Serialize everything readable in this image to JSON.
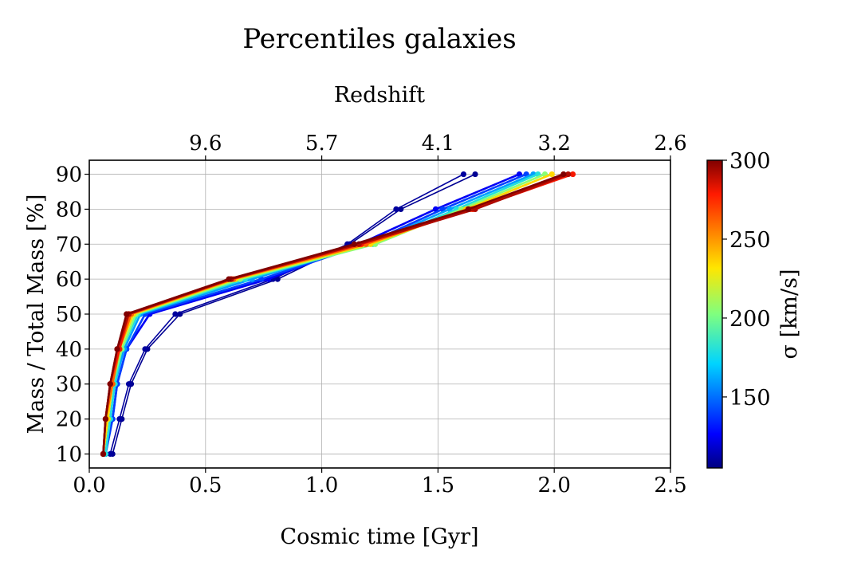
{
  "chart_data": {
    "type": "line",
    "title": "Percentiles galaxies",
    "xlabel": "Cosmic time [Gyr]",
    "ylabel": "Mass / Total Mass [%]",
    "xlim": [
      0.0,
      2.5
    ],
    "ylim": [
      6,
      94
    ],
    "grid": true,
    "xticks": [
      "0.0",
      "0.5",
      "1.0",
      "1.5",
      "2.0",
      "2.5"
    ],
    "yticks": [
      "10",
      "20",
      "30",
      "40",
      "50",
      "60",
      "70",
      "80",
      "90"
    ],
    "top_axis": {
      "label": "Redshift",
      "ticks": [
        {
          "label": "9.6",
          "time": 0.5
        },
        {
          "label": "5.7",
          "time": 1.0
        },
        {
          "label": "4.1",
          "time": 1.5
        },
        {
          "label": "3.2",
          "time": 2.0
        },
        {
          "label": "2.6",
          "time": 2.5
        }
      ]
    },
    "colorbar": {
      "label": "σ [km/s]",
      "min": 105,
      "max": 300,
      "ticks": [
        "150",
        "200",
        "250",
        "300"
      ],
      "tick_values": [
        150,
        200,
        250,
        300
      ],
      "colormap": "jet"
    },
    "percentiles": [
      10,
      20,
      30,
      40,
      50,
      60,
      70,
      80,
      90
    ],
    "series": [
      {
        "sigma": 108,
        "x": [
          0.1,
          0.14,
          0.18,
          0.25,
          0.39,
          0.81,
          1.12,
          1.34,
          1.66
        ]
      },
      {
        "sigma": 110,
        "x": [
          0.09,
          0.13,
          0.17,
          0.24,
          0.37,
          0.79,
          1.11,
          1.32,
          1.61
        ]
      },
      {
        "sigma": 125,
        "x": [
          0.07,
          0.1,
          0.12,
          0.16,
          0.26,
          0.77,
          1.16,
          1.49,
          1.85
        ]
      },
      {
        "sigma": 140,
        "x": [
          0.07,
          0.1,
          0.12,
          0.16,
          0.24,
          0.74,
          1.19,
          1.52,
          1.88
        ]
      },
      {
        "sigma": 160,
        "x": [
          0.07,
          0.09,
          0.11,
          0.15,
          0.22,
          0.7,
          1.2,
          1.55,
          1.91
        ]
      },
      {
        "sigma": 180,
        "x": [
          0.07,
          0.09,
          0.11,
          0.14,
          0.21,
          0.67,
          1.22,
          1.58,
          1.93
        ]
      },
      {
        "sigma": 205,
        "x": [
          0.06,
          0.08,
          0.1,
          0.14,
          0.2,
          0.65,
          1.23,
          1.6,
          1.96
        ]
      },
      {
        "sigma": 235,
        "x": [
          0.06,
          0.08,
          0.1,
          0.13,
          0.19,
          0.63,
          1.21,
          1.62,
          1.99
        ]
      },
      {
        "sigma": 262,
        "x": [
          0.06,
          0.07,
          0.1,
          0.13,
          0.18,
          0.62,
          1.19,
          1.64,
          2.04
        ]
      },
      {
        "sigma": 280,
        "x": [
          0.06,
          0.07,
          0.09,
          0.13,
          0.17,
          0.61,
          1.17,
          1.65,
          2.08
        ]
      },
      {
        "sigma": 292,
        "x": [
          0.06,
          0.07,
          0.09,
          0.12,
          0.17,
          0.61,
          1.16,
          1.66,
          2.06
        ]
      },
      {
        "sigma": 300,
        "x": [
          0.06,
          0.07,
          0.09,
          0.12,
          0.16,
          0.6,
          1.14,
          1.63,
          2.04
        ]
      }
    ]
  }
}
